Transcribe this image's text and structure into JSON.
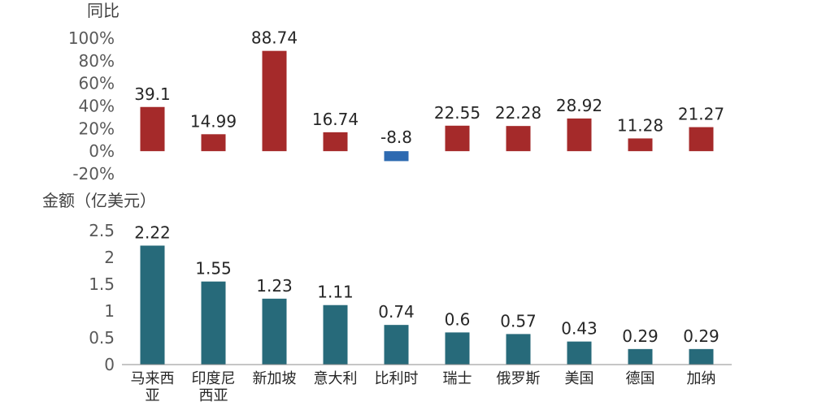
{
  "chart_data": [
    {
      "type": "bar",
      "ylabel": "同比",
      "categories": [
        "马来西亚",
        "印度尼西亚",
        "新加坡",
        "意大利",
        "比利时",
        "瑞士",
        "俄罗斯",
        "美国",
        "德国",
        "加纳"
      ],
      "values": [
        39.1,
        14.99,
        88.74,
        16.74,
        -8.8,
        22.55,
        22.28,
        28.92,
        11.28,
        21.27
      ],
      "value_labels": [
        "39.1",
        "14.99",
        "88.74",
        "16.74",
        "-8.8",
        "22.55",
        "22.28",
        "28.92",
        "11.28",
        "21.27"
      ],
      "ylim": [
        -20,
        100
      ],
      "yticks": [
        -20,
        0,
        20,
        40,
        60,
        80,
        100
      ],
      "ytick_labels": [
        "-20%",
        "0%",
        "20%",
        "40%",
        "60%",
        "80%",
        "100%"
      ],
      "grid": false,
      "colors": {
        "positive": "#A52A2A",
        "negative": "#2E6AB1"
      }
    },
    {
      "type": "bar",
      "ylabel": "金额（亿美元）",
      "categories": [
        "马来西亚",
        "印度尼西亚",
        "新加坡",
        "意大利",
        "比利时",
        "瑞士",
        "俄罗斯",
        "美国",
        "德国",
        "加纳"
      ],
      "category_lines": [
        [
          "马来西",
          "亚"
        ],
        [
          "印度尼",
          "西亚"
        ],
        [
          "新加坡"
        ],
        [
          "意大利"
        ],
        [
          "比利时"
        ],
        [
          "瑞士"
        ],
        [
          "俄罗斯"
        ],
        [
          "美国"
        ],
        [
          "德国"
        ],
        [
          "加纳"
        ]
      ],
      "values": [
        2.22,
        1.55,
        1.23,
        1.11,
        0.74,
        0.6,
        0.57,
        0.43,
        0.29,
        0.29
      ],
      "value_labels": [
        "2.22",
        "1.55",
        "1.23",
        "1.11",
        "0.74",
        "0.6",
        "0.57",
        "0.43",
        "0.29",
        "0.29"
      ],
      "ylim": [
        0,
        2.5
      ],
      "yticks": [
        0,
        0.5,
        1,
        1.5,
        2,
        2.5
      ],
      "ytick_labels": [
        "0",
        "0.5",
        "1",
        "1.5",
        "2",
        "2.5"
      ],
      "grid": false,
      "colors": {
        "bar": "#276A7A",
        "axis": "#8C8C8C"
      }
    }
  ]
}
